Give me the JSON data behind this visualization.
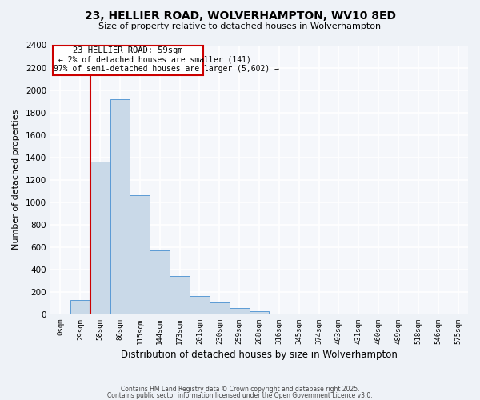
{
  "title": "23, HELLIER ROAD, WOLVERHAMPTON, WV10 8ED",
  "subtitle": "Size of property relative to detached houses in Wolverhampton",
  "xlabel": "Distribution of detached houses by size in Wolverhampton",
  "ylabel": "Number of detached properties",
  "bin_labels": [
    "0sqm",
    "29sqm",
    "58sqm",
    "86sqm",
    "115sqm",
    "144sqm",
    "173sqm",
    "201sqm",
    "230sqm",
    "259sqm",
    "288sqm",
    "316sqm",
    "345sqm",
    "374sqm",
    "403sqm",
    "431sqm",
    "460sqm",
    "489sqm",
    "518sqm",
    "546sqm",
    "575sqm"
  ],
  "bar_values": [
    0,
    130,
    1360,
    1920,
    1060,
    570,
    340,
    165,
    105,
    60,
    30,
    10,
    5,
    3,
    1,
    0,
    0,
    0,
    0,
    0,
    0
  ],
  "bar_color": "#c9d9e8",
  "bar_edge_color": "#5b9bd5",
  "ylim": [
    0,
    2400
  ],
  "yticks": [
    0,
    200,
    400,
    600,
    800,
    1000,
    1200,
    1400,
    1600,
    1800,
    2000,
    2200,
    2400
  ],
  "vline_color": "#cc0000",
  "annotation_title": "23 HELLIER ROAD: 59sqm",
  "annotation_line1": "← 2% of detached houses are smaller (141)",
  "annotation_line2": "97% of semi-detached houses are larger (5,602) →",
  "footer_line1": "Contains HM Land Registry data © Crown copyright and database right 2025.",
  "footer_line2": "Contains public sector information licensed under the Open Government Licence v3.0.",
  "bg_color": "#eef2f7",
  "plot_bg_color": "#f5f7fb",
  "grid_color": "#ffffff"
}
